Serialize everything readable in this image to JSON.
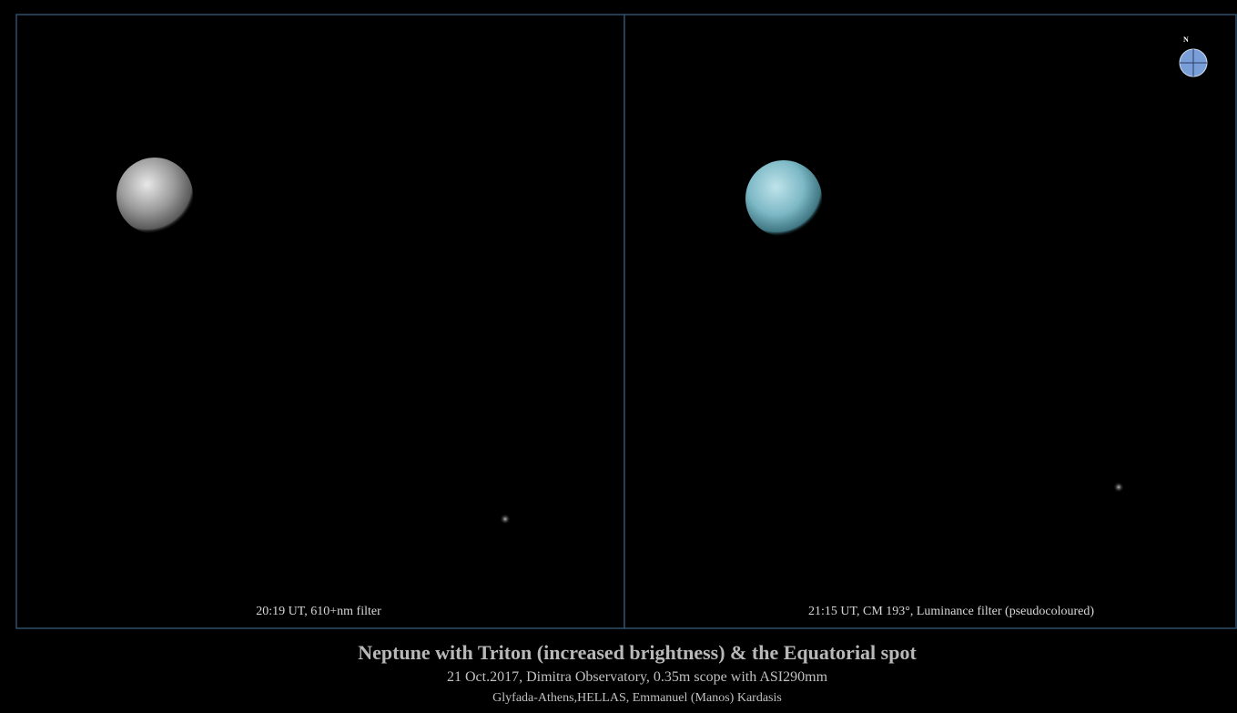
{
  "panels": [
    {
      "caption": "20:19 UT,  610+nm filter"
    },
    {
      "caption": "21:15 UT, CM 193°, Luminance filter (pseudocoloured)",
      "compass": "N"
    }
  ],
  "footer": {
    "title": "Neptune with Triton (increased brightness) & the Equatorial spot",
    "line1": "21 Oct.2017,  Dimitra Observatory, 0.35m scope with ASI290mm",
    "line2": "Glyfada-Athens,HELLAS, Emmanuel (Manos) Kardasis"
  }
}
